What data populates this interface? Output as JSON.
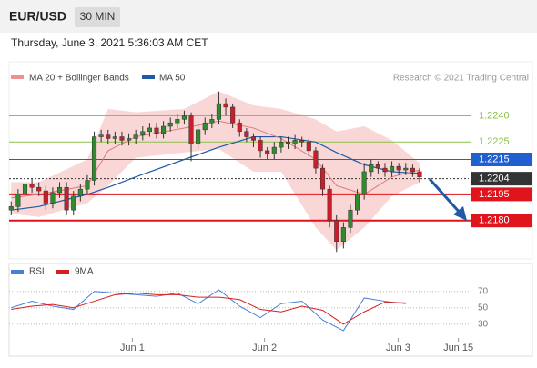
{
  "header": {
    "symbol": "EUR/USD",
    "timeframe": "30 MIN",
    "datetime": "Thursday, June 3, 2021 5:36:03 AM CET"
  },
  "chart_data": {
    "type": "candlestick",
    "legend": {
      "bands": "MA 20 + Bollinger Bands",
      "ma50": "MA 50",
      "source": "Research © 2021 Trading Central"
    },
    "up_color": "#2e8b2e",
    "down_color": "#c8202a",
    "open": [
      1.2186,
      1.2188,
      1.2195,
      1.2201,
      1.2199,
      1.2197,
      1.219,
      1.2196,
      1.2199,
      1.2186,
      1.2194,
      1.2198,
      1.2203,
      1.2228,
      1.2229,
      1.2227,
      1.2228,
      1.2226,
      1.2227,
      1.2229,
      1.2231,
      1.2233,
      1.223,
      1.2234,
      1.2236,
      1.2238,
      1.224,
      1.2224,
      1.2232,
      1.2236,
      1.2238,
      1.2247,
      1.2245,
      1.2236,
      1.2231,
      1.2228,
      1.2226,
      1.222,
      1.2218,
      1.2222,
      1.2225,
      1.2224,
      1.2226,
      1.2225,
      1.222,
      1.221,
      1.2198,
      1.218,
      1.2168,
      1.2176,
      1.2186,
      1.2195,
      1.2208,
      1.2212,
      1.221,
      1.2208,
      1.2211,
      1.2209,
      1.221,
      1.2208
    ],
    "high": [
      1.2191,
      1.2198,
      1.2204,
      1.2204,
      1.2202,
      1.22,
      1.2199,
      1.2202,
      1.2202,
      1.2197,
      1.2201,
      1.2206,
      1.2231,
      1.2232,
      1.2232,
      1.2231,
      1.2231,
      1.223,
      1.2232,
      1.2234,
      1.2236,
      1.2236,
      1.2237,
      1.2239,
      1.2241,
      1.2243,
      1.2242,
      1.2235,
      1.2239,
      1.2241,
      1.2254,
      1.225,
      1.2247,
      1.2238,
      1.2233,
      1.223,
      1.2228,
      1.2222,
      1.2225,
      1.2228,
      1.2228,
      1.2229,
      1.2228,
      1.2227,
      1.2222,
      1.2212,
      1.22,
      1.2183,
      1.2179,
      1.2189,
      1.2198,
      1.2213,
      1.2215,
      1.2214,
      1.2213,
      1.2214,
      1.2213,
      1.2213,
      1.2212,
      1.221
    ],
    "low": [
      1.2183,
      1.2185,
      1.2192,
      1.2196,
      1.2194,
      1.2186,
      1.2187,
      1.2193,
      1.2183,
      1.2183,
      1.2191,
      1.2195,
      1.22,
      1.2225,
      1.2224,
      1.2224,
      1.2223,
      1.2223,
      1.2224,
      1.2226,
      1.2228,
      1.2227,
      1.2227,
      1.2231,
      1.2233,
      1.2235,
      1.2214,
      1.2221,
      1.2229,
      1.2233,
      1.2235,
      1.224,
      1.2233,
      1.2228,
      1.2225,
      1.2222,
      1.2216,
      1.2215,
      1.2215,
      1.2219,
      1.2221,
      1.2221,
      1.2222,
      1.2217,
      1.2207,
      1.2194,
      1.2176,
      1.2162,
      1.2164,
      1.2173,
      1.2183,
      1.2192,
      1.2205,
      1.2207,
      1.2205,
      1.2205,
      1.2206,
      1.2206,
      1.2205,
      1.2202
    ],
    "close": [
      1.2188,
      1.2195,
      1.2201,
      1.2199,
      1.2197,
      1.219,
      1.2196,
      1.2199,
      1.2186,
      1.2194,
      1.2198,
      1.2203,
      1.2228,
      1.2229,
      1.2227,
      1.2228,
      1.2226,
      1.2227,
      1.2229,
      1.2231,
      1.2233,
      1.223,
      1.2234,
      1.2236,
      1.2238,
      1.224,
      1.2224,
      1.2232,
      1.2236,
      1.2238,
      1.2247,
      1.2245,
      1.2236,
      1.2231,
      1.2228,
      1.2226,
      1.222,
      1.2218,
      1.2222,
      1.2225,
      1.2224,
      1.2226,
      1.2225,
      1.222,
      1.221,
      1.2198,
      1.218,
      1.2168,
      1.2176,
      1.2186,
      1.2195,
      1.2208,
      1.2212,
      1.221,
      1.2208,
      1.2211,
      1.2209,
      1.221,
      1.2208,
      1.2205
    ],
    "overlay_x": [
      0,
      4,
      11,
      14,
      18,
      25,
      30,
      35,
      39,
      44,
      47,
      51,
      55,
      59
    ],
    "band_upper": [
      1.2202,
      1.2202,
      1.2215,
      1.2244,
      1.2242,
      1.2244,
      1.2254,
      1.2246,
      1.2244,
      1.2238,
      1.2231,
      1.2234,
      1.2226,
      1.2213
    ],
    "band_lower": [
      1.2184,
      1.2182,
      1.219,
      1.22,
      1.2216,
      1.2219,
      1.2221,
      1.2208,
      1.2208,
      1.2176,
      1.2163,
      1.2176,
      1.2194,
      1.2202
    ],
    "ma20": [
      1.2193,
      1.2195,
      1.22,
      1.222,
      1.2228,
      1.2233,
      1.2237,
      1.2233,
      1.2227,
      1.2215,
      1.22,
      1.2195,
      1.2205,
      1.2209
    ],
    "ma50": [
      1.2186,
      1.2188,
      1.2195,
      1.2199,
      1.2205,
      1.2215,
      1.2222,
      1.2228,
      1.2228,
      1.2225,
      1.2219,
      1.2212,
      1.2208,
      1.2207
    ],
    "band_color": "#f4b6b6",
    "ma20_color": "#e07a7a",
    "ma50_color": "#1f5aa6",
    "levels": [
      {
        "value": 1.224,
        "label": "1.2240",
        "color": "#8cbf4a",
        "style": "line"
      },
      {
        "value": 1.2225,
        "color": "#8cbf4a",
        "style": "line"
      },
      {
        "value": 1.2215,
        "color": "#1f5fcf",
        "style": "box"
      },
      {
        "value": 1.2204,
        "color": "#333333",
        "style": "dotted"
      },
      {
        "value": 1.2195,
        "color": "#e0141c",
        "style": "box"
      },
      {
        "value": 1.218,
        "label": "1.2180",
        "color": "#e0141c",
        "style": "box"
      }
    ],
    "xlim": [
      -0.3,
      66.1
    ],
    "ylim": [
      1.2159,
      1.2271
    ],
    "xticks": [
      {
        "value": 17.5,
        "label": "Jun 1"
      },
      {
        "value": 36.6,
        "label": "Jun 2"
      },
      {
        "value": 55.9,
        "label": "Jun 3"
      },
      {
        "value": 64.6,
        "label": "Jun 15"
      }
    ],
    "rsi": {
      "legend": [
        "RSI",
        "9MA"
      ],
      "colors": [
        "#4a7fd6",
        "#d62020"
      ],
      "x": [
        0,
        3,
        6,
        9,
        12,
        15,
        18,
        21,
        24,
        27,
        30,
        33,
        36,
        39,
        42,
        45,
        48,
        51,
        54,
        57
      ],
      "rsi": [
        50,
        58,
        52,
        48,
        70,
        68,
        66,
        64,
        68,
        55,
        72,
        52,
        38,
        55,
        58,
        35,
        22,
        62,
        58,
        55
      ],
      "ma9": [
        48,
        52,
        54,
        50,
        58,
        66,
        68,
        66,
        66,
        63,
        63,
        60,
        48,
        45,
        52,
        47,
        30,
        45,
        57,
        56
      ],
      "ylim": [
        13,
        82
      ],
      "yticks": [
        30,
        50,
        70
      ]
    }
  }
}
